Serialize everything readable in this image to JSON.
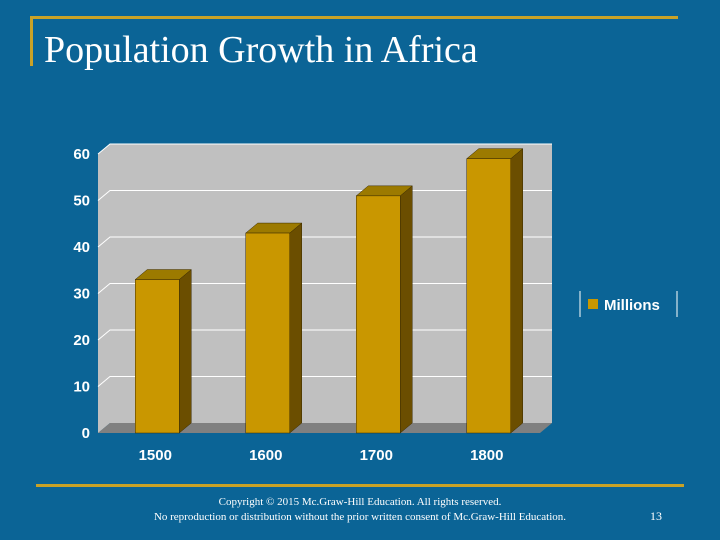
{
  "slide": {
    "title": "Population Growth in Africa",
    "copyright": "Copyright © 2015 Mc.Graw-Hill Education. All rights reserved.",
    "notice": "No reproduction or distribution without the prior written consent of Mc.Graw-Hill Education.",
    "page_number": "13"
  },
  "colors": {
    "background": "#0B6496",
    "accent": "#C9A227",
    "bar_front": "#C99700",
    "bar_top": "#9C7A00",
    "bar_side": "#6B4E00",
    "plot_back": "#C0C0C0",
    "plot_floor": "#808080"
  },
  "chart_data": {
    "type": "bar",
    "title": "",
    "categories": [
      "1500",
      "1600",
      "1700",
      "1800"
    ],
    "series": [
      {
        "name": "Millions",
        "values": [
          33,
          43,
          51,
          59
        ]
      }
    ],
    "ylim": [
      0,
      60
    ],
    "yticks": [
      "0",
      "10",
      "20",
      "30",
      "40",
      "50",
      "60"
    ],
    "xlabel": "",
    "ylabel": "",
    "legend": "right",
    "grid": true
  }
}
